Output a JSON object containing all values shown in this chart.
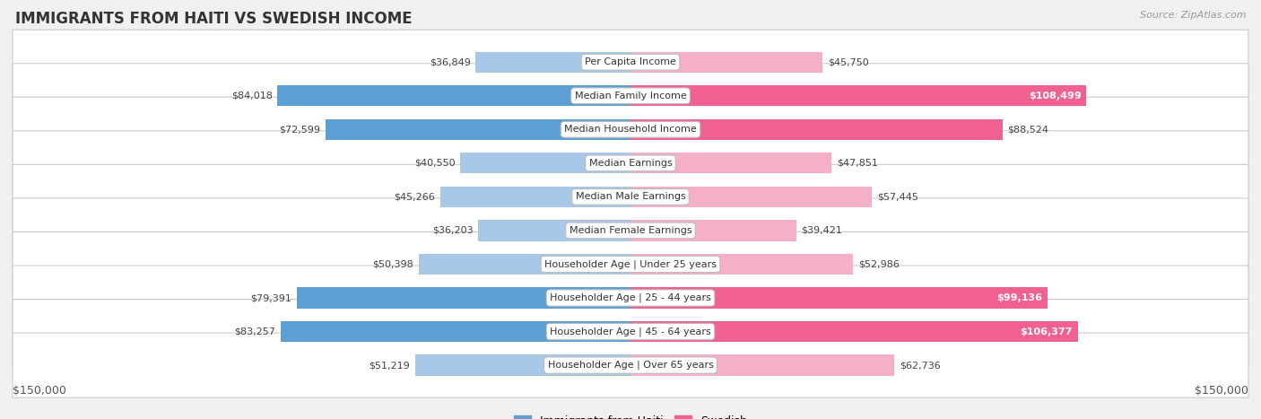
{
  "title": "IMMIGRANTS FROM HAITI VS SWEDISH INCOME",
  "source": "Source: ZipAtlas.com",
  "categories": [
    "Per Capita Income",
    "Median Family Income",
    "Median Household Income",
    "Median Earnings",
    "Median Male Earnings",
    "Median Female Earnings",
    "Householder Age | Under 25 years",
    "Householder Age | 25 - 44 years",
    "Householder Age | 45 - 64 years",
    "Householder Age | Over 65 years"
  ],
  "haiti_values": [
    36849,
    84018,
    72599,
    40550,
    45266,
    36203,
    50398,
    79391,
    83257,
    51219
  ],
  "swedish_values": [
    45750,
    108499,
    88524,
    47851,
    57445,
    39421,
    52986,
    99136,
    106377,
    62736
  ],
  "haiti_labels": [
    "$36,849",
    "$84,018",
    "$72,599",
    "$40,550",
    "$45,266",
    "$36,203",
    "$50,398",
    "$79,391",
    "$83,257",
    "$51,219"
  ],
  "swedish_labels": [
    "$45,750",
    "$108,499",
    "$88,524",
    "$47,851",
    "$57,445",
    "$39,421",
    "$52,986",
    "$99,136",
    "$106,377",
    "$62,736"
  ],
  "haiti_color_light": "#a8c8e8",
  "haiti_color_dark": "#5b9fd4",
  "swedish_color_light": "#f5afc8",
  "swedish_color_dark": "#f06090",
  "haiti_dark_indices": [
    1,
    2,
    7,
    8
  ],
  "swedish_dark_indices": [
    1,
    2,
    7,
    8
  ],
  "swedish_label_inside_indices": [
    1,
    7,
    8
  ],
  "max_value": 150000,
  "axis_label_left": "$150,000",
  "axis_label_right": "$150,000",
  "legend_haiti": "Immigrants from Haiti",
  "legend_swedish": "Swedish",
  "background_color": "#f0f0f0",
  "row_bg_color": "#ffffff"
}
